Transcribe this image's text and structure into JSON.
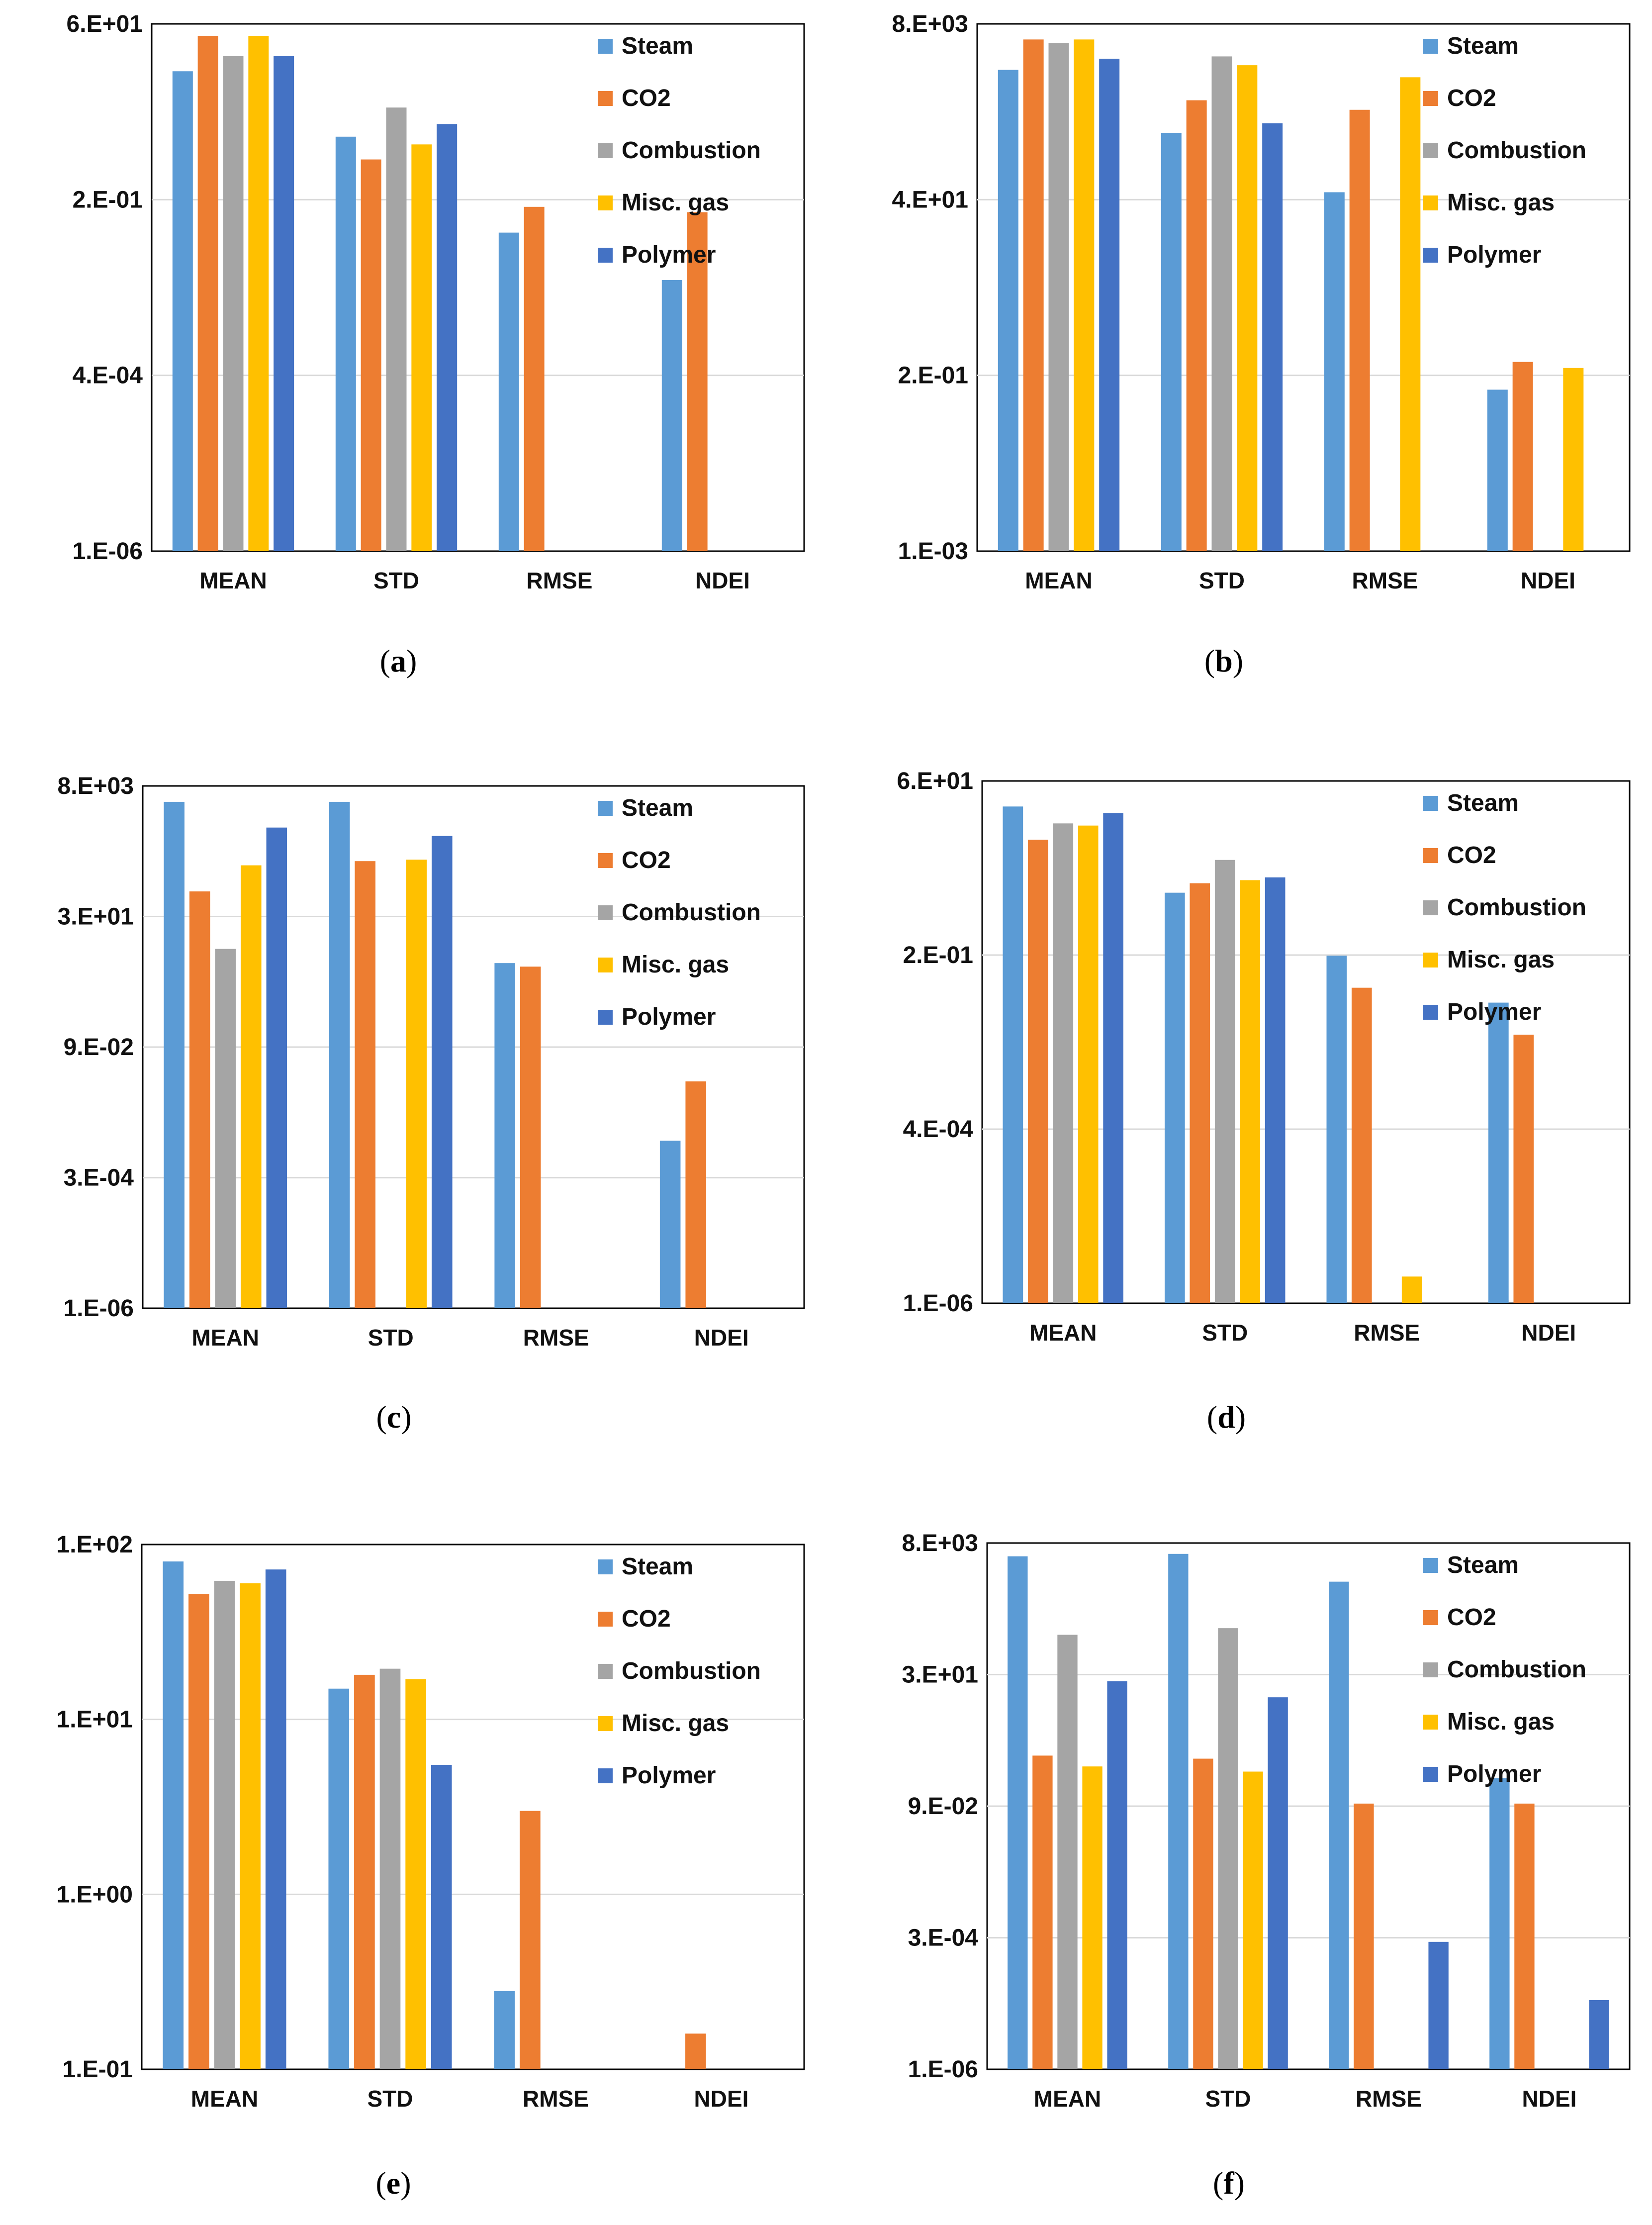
{
  "colors": {
    "Steam": "#5b9bd5",
    "CO2": "#ed7d31",
    "Combustion": "#a5a5a5",
    "Misc. gas": "#ffc000",
    "Polymer": "#4472c4",
    "gridline": "#d9d9d9",
    "frame": "#000000"
  },
  "legend_entries": [
    "Steam",
    "CO2",
    "Combustion",
    "Misc. gas",
    "Polymer"
  ],
  "chart_data": [
    {
      "type": "bar",
      "caption_label": "a",
      "scale": "log",
      "categories": [
        "MEAN",
        "STD",
        "RMSE",
        "NDEI"
      ],
      "tick_labels": [
        "6.E+01",
        "2.E-01",
        "4.E-04",
        "1.E-06"
      ],
      "ylim": [
        1e-06,
        60
      ],
      "legend_position": "top-right",
      "grid": true,
      "series": [
        {
          "name": "Steam",
          "values": [
            12,
            1.3,
            0.05,
            0.01
          ]
        },
        {
          "name": "CO2",
          "values": [
            40,
            0.6,
            0.12,
            0.1
          ]
        },
        {
          "name": "Combustion",
          "values": [
            20,
            3.5,
            null,
            null
          ]
        },
        {
          "name": "Misc. gas",
          "values": [
            40,
            1.0,
            null,
            null
          ]
        },
        {
          "name": "Polymer",
          "values": [
            20,
            2.0,
            null,
            null
          ]
        }
      ]
    },
    {
      "type": "bar",
      "caption_label": "b",
      "scale": "log",
      "categories": [
        "MEAN",
        "STD",
        "RMSE",
        "NDEI"
      ],
      "tick_labels": [
        "8.E+03",
        "4.E+01",
        "2.E-01",
        "1.E-03"
      ],
      "ylim": [
        0.001,
        8000
      ],
      "legend_position": "top-right",
      "grid": true,
      "series": [
        {
          "name": "Steam",
          "values": [
            2000,
            300,
            50,
            0.13
          ]
        },
        {
          "name": "CO2",
          "values": [
            5000,
            800,
            600,
            0.3
          ]
        },
        {
          "name": "Combustion",
          "values": [
            4500,
            3000,
            null,
            null
          ]
        },
        {
          "name": "Misc. gas",
          "values": [
            5000,
            2300,
            1600,
            0.25
          ]
        },
        {
          "name": "Polymer",
          "values": [
            2800,
            400,
            null,
            null
          ]
        }
      ]
    },
    {
      "type": "bar",
      "caption_label": "c",
      "scale": "log",
      "categories": [
        "MEAN",
        "STD",
        "RMSE",
        "NDEI"
      ],
      "tick_labels": [
        "8.E+03",
        "3.E+01",
        "9.E-02",
        "3.E-04",
        "1.E-06"
      ],
      "ylim": [
        1e-06,
        8000
      ],
      "legend_position": "top-right",
      "grid": true,
      "series": [
        {
          "name": "Steam",
          "values": [
            4000,
            4000,
            3.5,
            0.0015
          ]
        },
        {
          "name": "CO2",
          "values": [
            80,
            300,
            3.0,
            0.02
          ]
        },
        {
          "name": "Combustion",
          "values": [
            6.5,
            null,
            null,
            null
          ]
        },
        {
          "name": "Misc. gas",
          "values": [
            250,
            320,
            null,
            null
          ]
        },
        {
          "name": "Polymer",
          "values": [
            1300,
            900,
            null,
            null
          ]
        }
      ]
    },
    {
      "type": "bar",
      "caption_label": "d",
      "scale": "log",
      "categories": [
        "MEAN",
        "STD",
        "RMSE",
        "NDEI"
      ],
      "tick_labels": [
        "6.E+01",
        "2.E-01",
        "4.E-04",
        "1.E-06"
      ],
      "ylim": [
        1e-06,
        60
      ],
      "legend_position": "top-right",
      "grid": true,
      "series": [
        {
          "name": "Steam",
          "values": [
            25,
            1.3,
            0.15,
            0.03
          ]
        },
        {
          "name": "CO2",
          "values": [
            8,
            1.8,
            0.05,
            0.01
          ]
        },
        {
          "name": "Combustion",
          "values": [
            14,
            4.0,
            null,
            null
          ]
        },
        {
          "name": "Misc. gas",
          "values": [
            13,
            2.0,
            2.5e-06,
            null
          ]
        },
        {
          "name": "Polymer",
          "values": [
            20,
            2.2,
            null,
            null
          ]
        }
      ]
    },
    {
      "type": "bar",
      "caption_label": "e",
      "scale": "log",
      "categories": [
        "MEAN",
        "STD",
        "RMSE",
        "NDEI"
      ],
      "tick_labels": [
        "1.E+02",
        "1.E+01",
        "1.E+00",
        "1.E-01"
      ],
      "ylim": [
        0.1,
        100
      ],
      "legend_position": "top-right",
      "grid": true,
      "series": [
        {
          "name": "Steam",
          "values": [
            80,
            15,
            0.28,
            null
          ]
        },
        {
          "name": "CO2",
          "values": [
            52,
            18,
            3.0,
            0.16
          ]
        },
        {
          "name": "Combustion",
          "values": [
            62,
            19.5,
            null,
            null
          ]
        },
        {
          "name": "Misc. gas",
          "values": [
            60,
            17,
            null,
            null
          ]
        },
        {
          "name": "Polymer",
          "values": [
            72,
            5.5,
            null,
            null
          ]
        }
      ]
    },
    {
      "type": "bar",
      "caption_label": "f",
      "scale": "log",
      "categories": [
        "MEAN",
        "STD",
        "RMSE",
        "NDEI"
      ],
      "tick_labels": [
        "8.E+03",
        "3.E+01",
        "9.E-02",
        "3.E-04",
        "1.E-06"
      ],
      "ylim": [
        1e-06,
        8000
      ],
      "legend_position": "top-right",
      "grid": true,
      "series": [
        {
          "name": "Steam",
          "values": [
            4500,
            5000,
            1500,
            0.3
          ]
        },
        {
          "name": "CO2",
          "values": [
            0.8,
            0.7,
            0.1,
            0.1
          ]
        },
        {
          "name": "Combustion",
          "values": [
            150,
            200,
            null,
            null
          ]
        },
        {
          "name": "Misc. gas",
          "values": [
            0.5,
            0.4,
            null,
            null
          ]
        },
        {
          "name": "Polymer",
          "values": [
            20,
            10,
            0.00025,
            2e-05
          ]
        }
      ]
    }
  ]
}
